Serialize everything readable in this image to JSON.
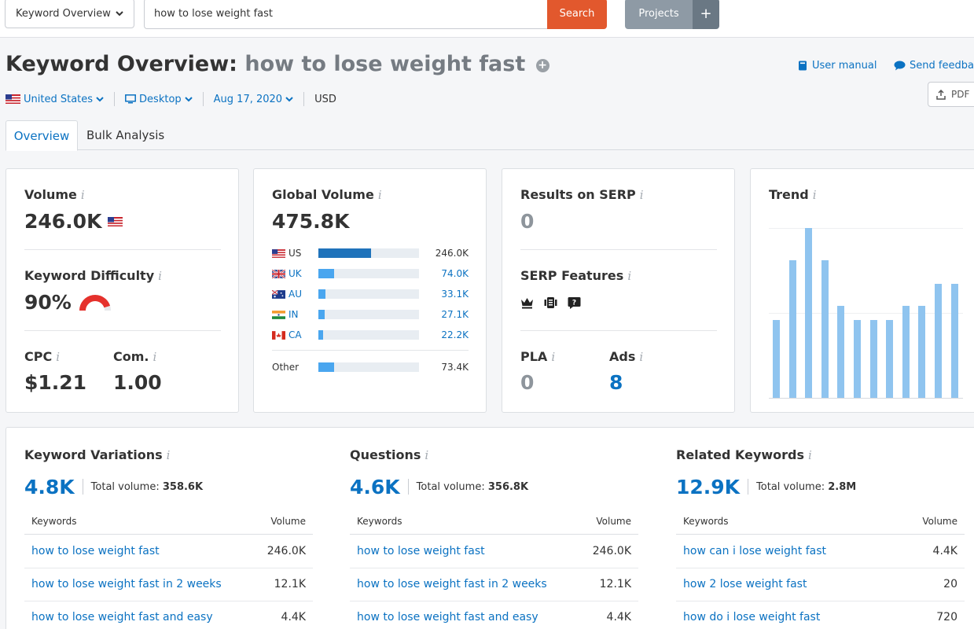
{
  "topbar": {
    "database_select": "Keyword Overview",
    "search_value": "how to lose weight fast",
    "search_button": "Search",
    "projects_button": "Projects",
    "projects_plus": "+"
  },
  "header": {
    "title_prefix": "Keyword Overview:",
    "keyword": "how to lose weight fast",
    "add_icon": "+",
    "user_manual": "User manual",
    "send_feedback": "Send feedbac",
    "pdf": "PDF"
  },
  "filters": {
    "country": "United States",
    "device": "Desktop",
    "date": "Aug 17, 2020",
    "currency": "USD"
  },
  "tabs": [
    {
      "label": "Overview",
      "active": true
    },
    {
      "label": "Bulk Analysis",
      "active": false
    }
  ],
  "info_glyph": "i",
  "volume_card": {
    "volume_label": "Volume",
    "volume_value": "246.0K",
    "difficulty_label": "Keyword Difficulty",
    "difficulty_value": "90%",
    "difficulty_level": 0.9,
    "cpc_label": "CPC",
    "cpc_value": "$1.21",
    "com_label": "Com.",
    "com_value": "1.00"
  },
  "global_volume": {
    "label": "Global Volume",
    "value": "475.8K",
    "rows": [
      {
        "country": "US",
        "value": "246.0K",
        "fraction": 0.52
      },
      {
        "country": "UK",
        "value": "74.0K",
        "fraction": 0.16
      },
      {
        "country": "AU",
        "value": "33.1K",
        "fraction": 0.07
      },
      {
        "country": "IN",
        "value": "27.1K",
        "fraction": 0.06
      },
      {
        "country": "CA",
        "value": "22.2K",
        "fraction": 0.05
      }
    ],
    "other": {
      "country": "Other",
      "value": "73.4K",
      "fraction": 0.16
    }
  },
  "serp": {
    "results_label": "Results on SERP",
    "results_value": "0",
    "features_label": "SERP Features",
    "feature_icons": [
      "crown-icon",
      "carousel-icon",
      "question-icon"
    ],
    "pla_label": "PLA",
    "pla_value": "0",
    "ads_label": "Ads",
    "ads_value": "8"
  },
  "trend": {
    "label": "Trend",
    "accent": "#8fc4ef",
    "values": [
      0.46,
      0.81,
      1.0,
      0.81,
      0.54,
      0.46,
      0.46,
      0.46,
      0.54,
      0.54,
      0.67,
      0.67
    ]
  },
  "panels": [
    {
      "title": "Keyword Variations",
      "count": "4.8K",
      "total_label": "Total volume:",
      "total_value": "358.6K",
      "col_keyword": "Keywords",
      "col_volume": "Volume",
      "rows": [
        {
          "keyword": "how to lose weight fast",
          "volume": "246.0K"
        },
        {
          "keyword": "how to lose weight fast in 2 weeks",
          "volume": "12.1K"
        },
        {
          "keyword": "how to lose weight fast and easy",
          "volume": "4.4K"
        }
      ]
    },
    {
      "title": "Questions",
      "count": "4.6K",
      "total_label": "Total volume:",
      "total_value": "356.8K",
      "col_keyword": "Keywords",
      "col_volume": "Volume",
      "rows": [
        {
          "keyword": "how to lose weight fast",
          "volume": "246.0K"
        },
        {
          "keyword": "how to lose weight fast in 2 weeks",
          "volume": "12.1K"
        },
        {
          "keyword": "how to lose weight fast and easy",
          "volume": "4.4K"
        }
      ]
    },
    {
      "title": "Related Keywords",
      "count": "12.9K",
      "total_label": "Total volume:",
      "total_value": "2.8M",
      "col_keyword": "Keywords",
      "col_volume": "Volume",
      "rows": [
        {
          "keyword": "how can i lose weight fast",
          "volume": "4.4K"
        },
        {
          "keyword": "how 2 lose weight fast",
          "volume": "20"
        },
        {
          "keyword": "how do i lose weight fast",
          "volume": "720"
        }
      ]
    }
  ],
  "colors": {
    "brand_orange": "#e2582d",
    "link_blue": "#0b72c2",
    "difficulty_red": "#e5312c"
  }
}
